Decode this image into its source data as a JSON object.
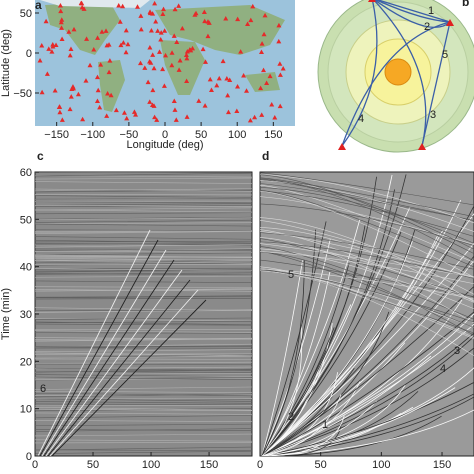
{
  "panels": [
    {
      "label": "a",
      "x_label": "Longitude (deg)",
      "y_label": "Latitude (deg)",
      "xlim": [
        -180,
        180
      ],
      "ylim": [
        -90,
        90
      ],
      "xticks": [
        {
          "value": -150,
          "label": "−150"
        },
        {
          "value": -100,
          "label": "−100"
        },
        {
          "value": -50,
          "label": "−50"
        },
        0,
        50,
        100,
        150
      ],
      "yticks": [
        50,
        0,
        {
          "value": -50,
          "label": "−50"
        }
      ]
    },
    {
      "label": "b",
      "phase_labels": [
        "1",
        "2",
        "3",
        "4",
        "5"
      ]
    },
    {
      "label": "c",
      "y_label": "Time (min)",
      "xlim": [
        0,
        187
      ],
      "ylim": [
        0,
        60
      ],
      "xticks": [
        0,
        50,
        100,
        150
      ],
      "yticks": [
        0,
        10,
        20,
        30,
        40,
        50,
        60
      ],
      "phase_labels": [
        "6"
      ]
    },
    {
      "label": "d",
      "xlim": [
        0,
        178
      ],
      "ylim": [
        0,
        60
      ],
      "xticks": [
        0,
        50,
        100,
        150
      ],
      "phase_labels": [
        "5",
        "2",
        "1",
        "3",
        "4"
      ]
    }
  ]
}
